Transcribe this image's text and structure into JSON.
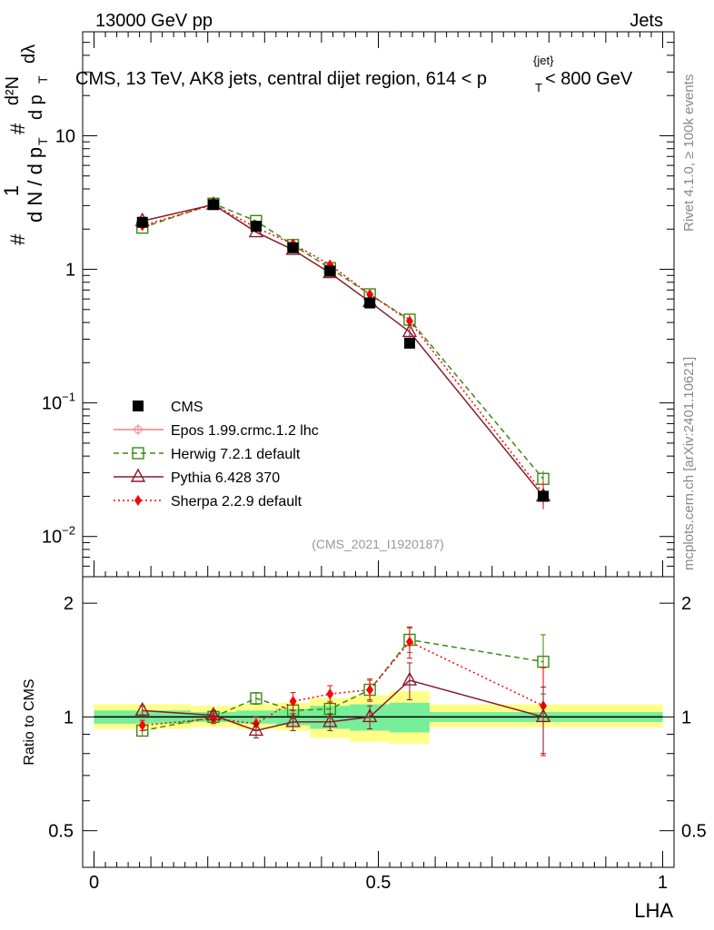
{
  "header": {
    "left": "13000 GeV pp",
    "right": "Jets"
  },
  "side": {
    "rivet": "Rivet 4.1.0, ≥ 100k events",
    "mcplots": "mcplots.cern.ch [arXiv:2401.10621]"
  },
  "main_plot": {
    "title": "CMS, 13 TeV, AK8 jets, central dijet region, 614 < p",
    "title_sup": "{jet}",
    "title_sub": "T",
    "title_end": " < 800 GeV",
    "ylabel": {
      "hash1": "#",
      "frac1_num": "1",
      "frac1_den": "d N / d p",
      "sub_T1": "T",
      "hash2": "#",
      "frac2_num": "d²N",
      "frac2_den": "d p",
      "sub_T2": "T",
      "dlambda": "dλ"
    },
    "watermark": "(CMS_2021_I1920187)",
    "ytick_labels": [
      {
        "base": "10",
        "exp": "−2",
        "value": 0.01
      },
      {
        "base": "10",
        "exp": "−1",
        "value": 0.1
      },
      {
        "base": "1",
        "exp": "",
        "value": 1
      },
      {
        "base": "10",
        "exp": "",
        "value": 10
      }
    ]
  },
  "ratio_plot": {
    "ylabel": "Ratio to CMS",
    "ytick_labels": [
      "0.5",
      "1",
      "2"
    ],
    "ytick_values": [
      0.5,
      1,
      2
    ]
  },
  "xaxis": {
    "label": "LHA",
    "tick_labels": [
      "0",
      "0.5",
      "1"
    ],
    "tick_values": [
      0,
      0.5,
      1
    ]
  },
  "legend": {
    "entries": [
      {
        "label": "CMS",
        "color": "#000000"
      },
      {
        "label": "Epos 1.99.crmc.1.2 lhc",
        "color": "#f08080"
      },
      {
        "label": "Herwig 7.2.1 default",
        "color": "#3a8a10"
      },
      {
        "label": "Pythia 6.428 370",
        "color": "#8b1a2a"
      },
      {
        "label": "Sherpa 2.2.9 default",
        "color": "#ff0000"
      }
    ]
  },
  "chart_data": {
    "type": "line",
    "x_scale": "linear",
    "xlim": [
      -0.02,
      1.02
    ],
    "main": {
      "y_scale": "log",
      "ylim": [
        0.005,
        60
      ],
      "series": [
        {
          "name": "CMS",
          "x": [
            0.085,
            0.21,
            0.285,
            0.35,
            0.415,
            0.485,
            0.555,
            0.79
          ],
          "y": [
            2.25,
            3.05,
            2.1,
            1.45,
            0.97,
            0.56,
            0.28,
            0.02
          ]
        },
        {
          "name": "Herwig 7.2.1 default",
          "x": [
            0.085,
            0.21,
            0.285,
            0.35,
            0.415,
            0.485,
            0.555,
            0.79
          ],
          "y": [
            2.05,
            3.1,
            2.3,
            1.52,
            1.02,
            0.65,
            0.42,
            0.027
          ],
          "yerr": [
            0,
            0,
            0,
            0,
            0,
            0,
            0.04,
            0.004
          ]
        },
        {
          "name": "Pythia 6.428 370",
          "x": [
            0.085,
            0.21,
            0.285,
            0.35,
            0.415,
            0.485,
            0.555,
            0.79
          ],
          "y": [
            2.3,
            3.05,
            1.9,
            1.4,
            0.94,
            0.57,
            0.34,
            0.02
          ],
          "yerr": [
            0,
            0,
            0,
            0,
            0,
            0,
            0.03,
            0.003
          ]
        },
        {
          "name": "Sherpa 2.2.9 default",
          "x": [
            0.085,
            0.21,
            0.285,
            0.35,
            0.415,
            0.485,
            0.555,
            0.79
          ],
          "y": [
            2.12,
            3.05,
            2.05,
            1.55,
            1.08,
            0.65,
            0.41,
            0.021
          ],
          "yerr": [
            0,
            0,
            0,
            0,
            0,
            0,
            0.03,
            0.005
          ]
        }
      ]
    },
    "ratio": {
      "y_scale": "log",
      "ylim": [
        0.4,
        2.35
      ],
      "bands": [
        {
          "x0": 0.0,
          "x1": 0.17,
          "outer": [
            0.93,
            1.08
          ],
          "inner": [
            0.96,
            1.04
          ]
        },
        {
          "x0": 0.17,
          "x1": 0.25,
          "outer": [
            0.94,
            1.07
          ],
          "inner": [
            0.97,
            1.03
          ]
        },
        {
          "x0": 0.25,
          "x1": 0.32,
          "outer": [
            0.93,
            1.08
          ],
          "inner": [
            0.96,
            1.04
          ]
        },
        {
          "x0": 0.32,
          "x1": 0.38,
          "outer": [
            0.92,
            1.09
          ],
          "inner": [
            0.95,
            1.05
          ]
        },
        {
          "x0": 0.38,
          "x1": 0.45,
          "outer": [
            0.88,
            1.12
          ],
          "inner": [
            0.93,
            1.07
          ]
        },
        {
          "x0": 0.45,
          "x1": 0.52,
          "outer": [
            0.86,
            1.14
          ],
          "inner": [
            0.92,
            1.08
          ]
        },
        {
          "x0": 0.52,
          "x1": 0.59,
          "outer": [
            0.85,
            1.17
          ],
          "inner": [
            0.91,
            1.09
          ]
        },
        {
          "x0": 0.59,
          "x1": 1.0,
          "outer": [
            0.94,
            1.08
          ],
          "inner": [
            0.97,
            1.03
          ]
        }
      ],
      "series": [
        {
          "name": "Herwig 7.2.1 default",
          "x": [
            0.085,
            0.21,
            0.285,
            0.35,
            0.415,
            0.485,
            0.555,
            0.79
          ],
          "y": [
            0.92,
            1.0,
            1.12,
            1.04,
            1.05,
            1.18,
            1.6,
            1.4
          ],
          "yerr": [
            0.03,
            0.03,
            0.04,
            0.05,
            0.05,
            0.07,
            0.12,
            0.25
          ]
        },
        {
          "name": "Pythia 6.428 370",
          "x": [
            0.085,
            0.21,
            0.285,
            0.35,
            0.415,
            0.485,
            0.555,
            0.79
          ],
          "y": [
            1.04,
            1.01,
            0.92,
            0.97,
            0.97,
            1.0,
            1.25,
            1.0
          ],
          "yerr": [
            0.03,
            0.03,
            0.04,
            0.05,
            0.05,
            0.07,
            0.14,
            0.2
          ]
        },
        {
          "name": "Sherpa 2.2.9 default",
          "x": [
            0.085,
            0.21,
            0.285,
            0.35,
            0.415,
            0.485,
            0.555,
            0.79
          ],
          "y": [
            0.95,
            0.99,
            0.96,
            1.1,
            1.15,
            1.18,
            1.58,
            1.07
          ],
          "yerr": [
            0.03,
            0.03,
            0.04,
            0.06,
            0.06,
            0.08,
            0.15,
            0.28
          ]
        }
      ]
    }
  }
}
